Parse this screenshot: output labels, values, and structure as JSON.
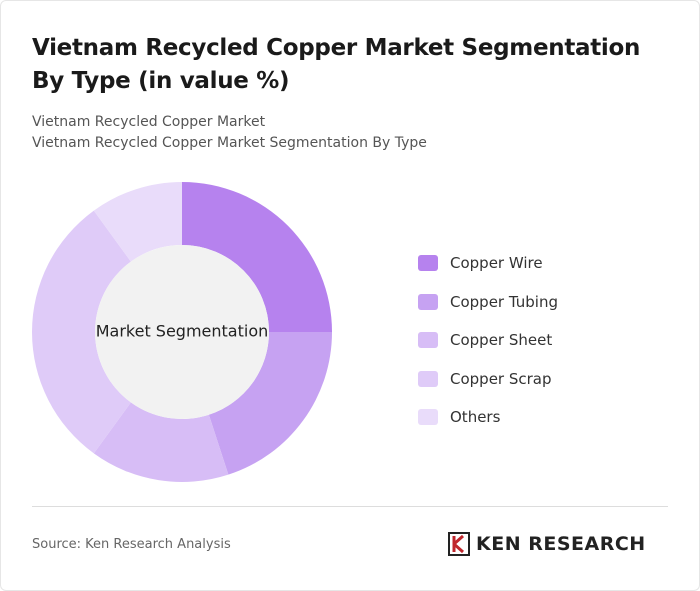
{
  "chart_data": {
    "type": "donut",
    "title": "Vietnam Recycled Copper Market Segmentation By Type (in value %)",
    "subtitle": [
      "Vietnam Recycled Copper Market",
      "Vietnam Recycled Copper Market Segmentation By Type"
    ],
    "center_label": "Market Segmentation",
    "categories": [
      "Copper Wire",
      "Copper Tubing",
      "Copper Sheet",
      "Copper Scrap",
      "Others"
    ],
    "values": [
      25,
      20,
      15,
      30,
      10
    ],
    "colors": [
      "#b682ee",
      "#c6a2f2",
      "#d7bdf6",
      "#dfcbf8",
      "#e9dcfa"
    ],
    "source": "Source: Ken Research Analysis",
    "logo": "KEN RESEARCH"
  }
}
